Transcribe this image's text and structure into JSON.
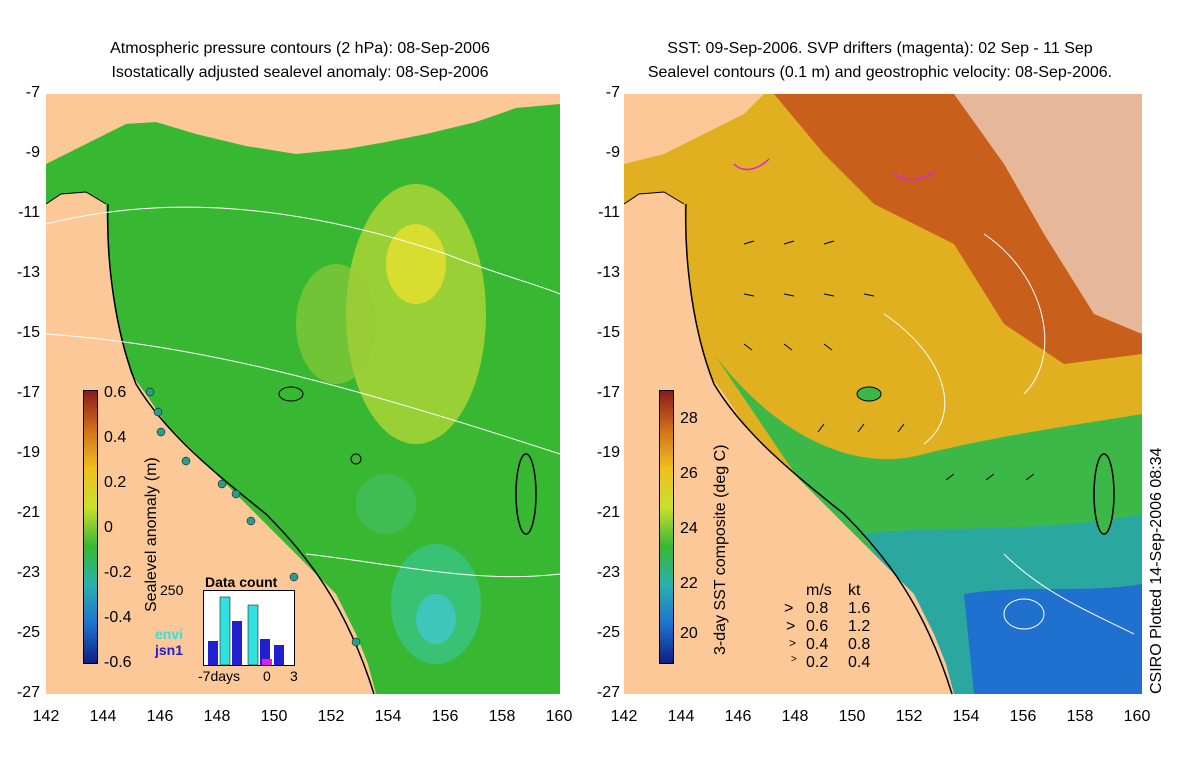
{
  "left_panel": {
    "title_line1": "Atmospheric pressure contours (2 hPa): 08-Sep-2006",
    "title_line2": "Isostatically adjusted sealevel anomaly: 08-Sep-2006",
    "colorbar_label": "Sealevel anomaly (m)",
    "colorbar_ticks": [
      "0.6",
      "0.4",
      "0.2",
      "0",
      "-0.2",
      "-0.4",
      "-0.6"
    ],
    "inset": {
      "title": "Data count",
      "ymax_label": "250",
      "x_ticks": [
        "-7days",
        "0",
        "3"
      ],
      "legend": [
        {
          "label": "envi",
          "color": "#33e0e0"
        },
        {
          "label": "jsn1",
          "color": "#2020d0"
        }
      ]
    }
  },
  "right_panel": {
    "title_line1": "SST: 09-Sep-2006. SVP drifters (magenta): 02 Sep - 11 Sep",
    "title_line2": "Sealevel contours (0.1 m) and geostrophic velocity: 08-Sep-2006.",
    "colorbar_label": "3-day SST composite (deg C)",
    "colorbar_ticks": [
      "28",
      "26",
      "24",
      "22",
      "20"
    ],
    "velocity_legend": {
      "header_ms": "m/s",
      "header_kt": "kt",
      "rows": [
        {
          "ms": "0.8",
          "kt": "1.6"
        },
        {
          "ms": "0.6",
          "kt": "1.2"
        },
        {
          "ms": "0.4",
          "kt": "0.8"
        },
        {
          "ms": "0.2",
          "kt": "0.4"
        }
      ]
    },
    "credit": "CSIRO Plotted 14-Sep-2006 08:34"
  },
  "axes": {
    "lat_ticks": [
      "-7",
      "-9",
      "-11",
      "-13",
      "-15",
      "-17",
      "-19",
      "-21",
      "-23",
      "-25",
      "-27"
    ],
    "lon_ticks": [
      "142",
      "144",
      "146",
      "148",
      "150",
      "152",
      "154",
      "156",
      "158",
      "160"
    ]
  },
  "colors": {
    "land": "#fcc898",
    "sla_mid": "#38b832",
    "sst_warm": "#c8601c",
    "sst_mid": "#e0b020",
    "sst_cool": "#2070d0"
  }
}
